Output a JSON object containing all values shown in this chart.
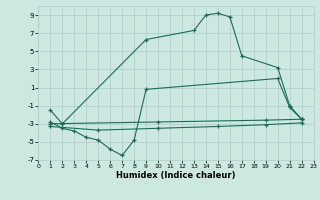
{
  "xlabel": "Humidex (Indice chaleur)",
  "xlim": [
    0,
    23
  ],
  "ylim": [
    -7,
    10
  ],
  "xticks": [
    0,
    1,
    2,
    3,
    4,
    5,
    6,
    7,
    8,
    9,
    10,
    11,
    12,
    13,
    14,
    15,
    16,
    17,
    18,
    19,
    20,
    21,
    22,
    23
  ],
  "yticks": [
    -7,
    -5,
    -3,
    -1,
    1,
    3,
    5,
    7,
    9
  ],
  "bg_color": "#cce8e0",
  "grid_color": "#aacfc8",
  "line_color": "#1a6b5e",
  "line1_x": [
    1,
    2,
    9,
    13,
    14,
    15,
    16,
    17,
    20,
    21,
    22
  ],
  "line1_y": [
    -1.5,
    -3.0,
    6.3,
    7.3,
    9.0,
    9.2,
    8.8,
    4.5,
    3.2,
    -1.0,
    -2.5
  ],
  "line2_x": [
    1,
    2,
    3,
    4,
    5,
    6,
    7,
    8,
    9,
    20,
    21,
    22
  ],
  "line2_y": [
    -2.8,
    -3.5,
    -3.8,
    -4.5,
    -4.8,
    -5.8,
    -6.5,
    -4.8,
    0.8,
    2.0,
    -1.2,
    -2.5
  ],
  "line3_x": [
    1,
    10,
    19,
    22
  ],
  "line3_y": [
    -3.0,
    -2.8,
    -2.6,
    -2.5
  ],
  "line4_x": [
    1,
    5,
    10,
    15,
    19,
    22
  ],
  "line4_y": [
    -3.3,
    -3.7,
    -3.5,
    -3.3,
    -3.1,
    -2.9
  ]
}
